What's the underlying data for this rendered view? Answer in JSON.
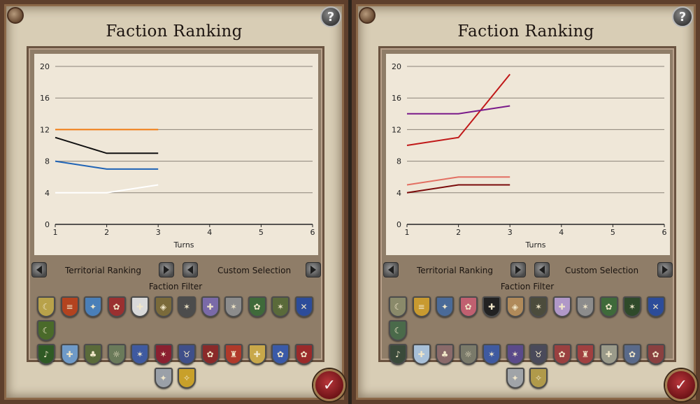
{
  "panels": [
    {
      "title": "Faction Ranking",
      "help_label": "?",
      "ranking_mode": "Territorial Ranking",
      "selection_mode": "Custom Selection",
      "filter_label": "Faction Filter",
      "confirm_symbol": "✓",
      "chart_data": {
        "type": "line",
        "x": [
          1,
          2,
          3
        ],
        "xlabel": "Turns",
        "ylabel": "",
        "xlim": [
          1,
          6
        ],
        "ylim": [
          0,
          20
        ],
        "xticks": [
          1,
          2,
          3,
          4,
          5,
          6
        ],
        "yticks": [
          0,
          4,
          8,
          12,
          16,
          20
        ],
        "grid": true,
        "series": [
          {
            "color": "#f07b12",
            "values": [
              12,
              12,
              12
            ]
          },
          {
            "color": "#101010",
            "values": [
              11,
              9,
              9
            ]
          },
          {
            "color": "#1f63b5",
            "values": [
              8,
              7,
              7
            ]
          },
          {
            "color": "#ffffff",
            "values": [
              4,
              4,
              5
            ]
          }
        ]
      },
      "factions": [
        {
          "name": "crescent",
          "color": "#b8a24a",
          "glyph": "☾"
        },
        {
          "name": "lions",
          "color": "#b3431f",
          "glyph": "≡"
        },
        {
          "name": "fleur",
          "color": "#4a7fb8",
          "glyph": "✦"
        },
        {
          "name": "dragon",
          "color": "#9a3030",
          "glyph": "✿"
        },
        {
          "name": "cross",
          "color": "#d9d9d9",
          "glyph": "✚"
        },
        {
          "name": "shield",
          "color": "#7a6a3a",
          "glyph": "◈"
        },
        {
          "name": "eagle",
          "color": "#4c4c4c",
          "glyph": "✶"
        },
        {
          "name": "cross-purple",
          "color": "#7a6aa8",
          "glyph": "✚"
        },
        {
          "name": "eagle-grey",
          "color": "#8c8c8c",
          "glyph": "✶"
        },
        {
          "name": "lion-green",
          "color": "#3f6a3a",
          "glyph": "✿"
        },
        {
          "name": "dragon-red",
          "color": "#5a6a3a",
          "glyph": "✶"
        },
        {
          "name": "saltire",
          "color": "#2c4c9a",
          "glyph": "✕"
        },
        {
          "name": "crescent-green",
          "color": "#4a6a2a",
          "glyph": "☾"
        },
        {
          "name": "harp",
          "color": "#2f5a25",
          "glyph": "♪"
        },
        {
          "name": "cross-blue",
          "color": "#6f9ac8",
          "glyph": "✚"
        },
        {
          "name": "tree",
          "color": "#5a6a3a",
          "glyph": "♣"
        },
        {
          "name": "sun",
          "color": "#6a7a5a",
          "glyph": "☼"
        },
        {
          "name": "eagle-blue",
          "color": "#3f5aa0",
          "glyph": "✶"
        },
        {
          "name": "eagle-red",
          "color": "#8a2030",
          "glyph": "✶"
        },
        {
          "name": "horns",
          "color": "#3f4f8a",
          "glyph": "♉"
        },
        {
          "name": "rose",
          "color": "#8a2a2a",
          "glyph": "✿"
        },
        {
          "name": "castle",
          "color": "#b03a2a",
          "glyph": "♜"
        },
        {
          "name": "cross-gold",
          "color": "#c8a84a",
          "glyph": "✚"
        },
        {
          "name": "lion-blue",
          "color": "#3a5aa8",
          "glyph": "✿"
        },
        {
          "name": "lion-red",
          "color": "#9a2a2a",
          "glyph": "✿"
        },
        {
          "name": "star",
          "color": "#9aa0a8",
          "glyph": "✦"
        },
        {
          "name": "dove",
          "color": "#c8a02a",
          "glyph": "✧"
        }
      ]
    },
    {
      "title": "Faction Ranking",
      "help_label": "?",
      "ranking_mode": "Territorial Ranking",
      "selection_mode": "Custom Selection",
      "filter_label": "Faction Filter",
      "confirm_symbol": "✓",
      "chart_data": {
        "type": "line",
        "x": [
          1,
          2,
          3
        ],
        "xlabel": "Turns",
        "ylabel": "",
        "xlim": [
          1,
          6
        ],
        "ylim": [
          0,
          20
        ],
        "xticks": [
          1,
          2,
          3,
          4,
          5,
          6
        ],
        "yticks": [
          0,
          4,
          8,
          12,
          16,
          20
        ],
        "grid": true,
        "series": [
          {
            "color": "#c01818",
            "values": [
              10,
              11,
              19
            ]
          },
          {
            "color": "#7a1a8a",
            "values": [
              14,
              14,
              15
            ]
          },
          {
            "color": "#e36f62",
            "values": [
              5,
              6,
              6
            ]
          },
          {
            "color": "#7a0a0a",
            "values": [
              4,
              5,
              5
            ]
          }
        ]
      },
      "factions": [
        {
          "name": "crescent",
          "color": "#8a8a6a",
          "glyph": "☾"
        },
        {
          "name": "lions",
          "color": "#c89a30",
          "glyph": "≡"
        },
        {
          "name": "fleur",
          "color": "#4a6a98",
          "glyph": "✦"
        },
        {
          "name": "dragon",
          "color": "#c06070",
          "glyph": "✿"
        },
        {
          "name": "cross",
          "color": "#222222",
          "glyph": "✚"
        },
        {
          "name": "shield",
          "color": "#b08a5a",
          "glyph": "◈"
        },
        {
          "name": "eagle",
          "color": "#4c4c3c",
          "glyph": "✶"
        },
        {
          "name": "cross-purple",
          "color": "#b098c8",
          "glyph": "✚"
        },
        {
          "name": "eagle-grey",
          "color": "#8c8c8c",
          "glyph": "✶"
        },
        {
          "name": "lion-green",
          "color": "#3f6a3a",
          "glyph": "✿"
        },
        {
          "name": "dragon-red",
          "color": "#2f4a2a",
          "glyph": "✶"
        },
        {
          "name": "saltire",
          "color": "#2c4c9a",
          "glyph": "✕"
        },
        {
          "name": "crescent-green",
          "color": "#4a6a4a",
          "glyph": "☾"
        },
        {
          "name": "harp",
          "color": "#3a4a3a",
          "glyph": "♪"
        },
        {
          "name": "cross-blue",
          "color": "#a8c0d8",
          "glyph": "✚"
        },
        {
          "name": "tree",
          "color": "#8a6a6a",
          "glyph": "♣"
        },
        {
          "name": "sun",
          "color": "#7a7a6a",
          "glyph": "☼"
        },
        {
          "name": "eagle-blue",
          "color": "#3f5aa0",
          "glyph": "✶"
        },
        {
          "name": "eagle-red",
          "color": "#5a4a8a",
          "glyph": "✶"
        },
        {
          "name": "horns",
          "color": "#4a4a5a",
          "glyph": "♉"
        },
        {
          "name": "rose",
          "color": "#9a4040",
          "glyph": "✿"
        },
        {
          "name": "castle",
          "color": "#a04040",
          "glyph": "♜"
        },
        {
          "name": "cross-gold",
          "color": "#9a9a8a",
          "glyph": "✚"
        },
        {
          "name": "lion-blue",
          "color": "#5a6a8a",
          "glyph": "✿"
        },
        {
          "name": "lion-red",
          "color": "#8a4040",
          "glyph": "✿"
        },
        {
          "name": "star",
          "color": "#a0a4a8",
          "glyph": "✦"
        },
        {
          "name": "dove",
          "color": "#b09a4a",
          "glyph": "✧"
        }
      ]
    }
  ]
}
